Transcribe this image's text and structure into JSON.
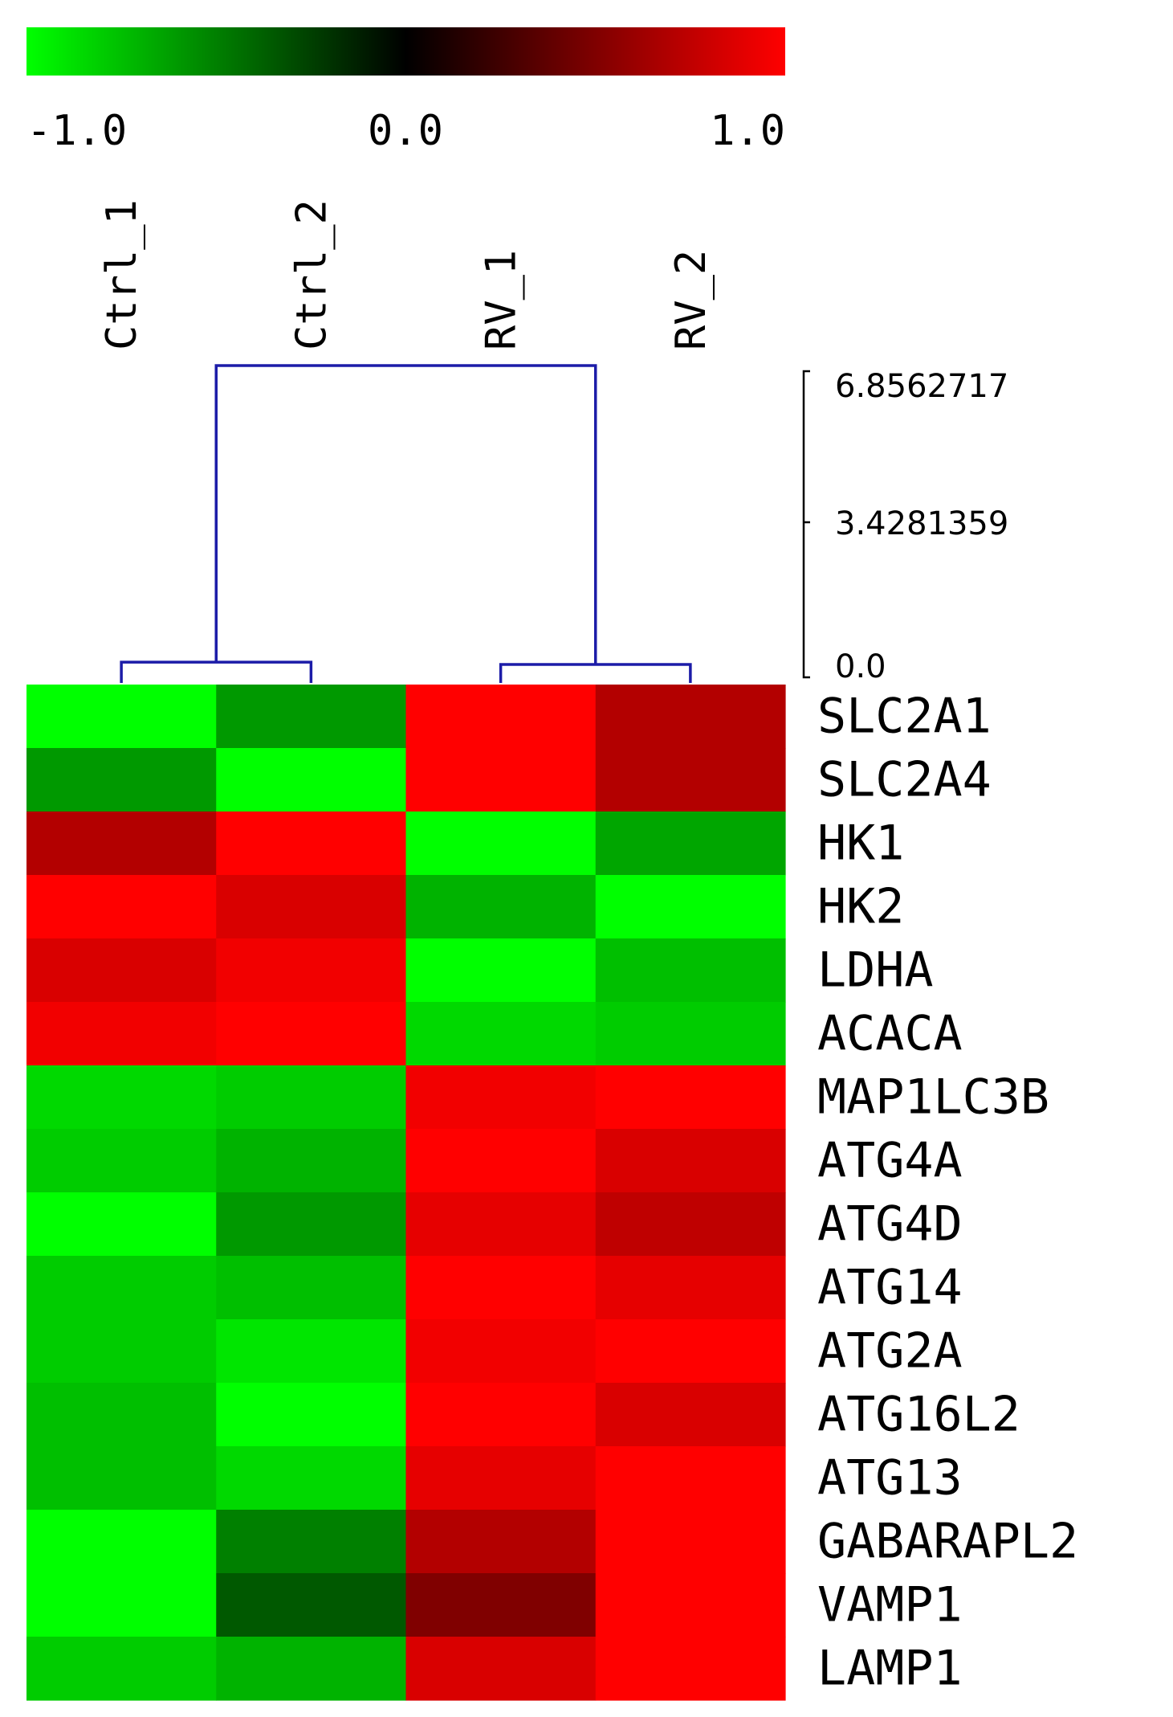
{
  "chart_data": {
    "type": "heatmap",
    "colorbar": {
      "min": -1.0,
      "mid": 0.0,
      "max": 1.0,
      "tick_labels": [
        "-1.0",
        "0.0",
        "1.0"
      ],
      "colors": {
        "low": "#00ff00",
        "mid": "#000000",
        "high": "#ff0000"
      }
    },
    "columns": [
      "Ctrl_1",
      "Ctrl_2",
      "RV_1",
      "RV_2"
    ],
    "rows": [
      "SLC2A1",
      "SLC2A4",
      "HK1",
      "HK2",
      "LDHA",
      "ACACA",
      "MAP1LC3B",
      "ATG4A",
      "ATG4D",
      "ATG14",
      "ATG2A",
      "ATG16L2",
      "ATG13",
      "GABARAPL2",
      "VAMP1",
      "LAMP1"
    ],
    "values": [
      [
        -1.0,
        -0.6,
        1.0,
        0.7
      ],
      [
        -0.6,
        -1.0,
        1.0,
        0.7
      ],
      [
        0.7,
        1.0,
        -1.0,
        -0.65
      ],
      [
        1.0,
        0.85,
        -0.7,
        -1.0
      ],
      [
        0.85,
        0.95,
        -1.0,
        -0.75
      ],
      [
        0.95,
        1.0,
        -0.85,
        -0.8
      ],
      [
        -0.85,
        -0.8,
        0.95,
        1.0
      ],
      [
        -0.8,
        -0.7,
        1.0,
        0.85
      ],
      [
        -1.0,
        -0.6,
        0.9,
        0.75
      ],
      [
        -0.8,
        -0.75,
        1.0,
        0.9
      ],
      [
        -0.8,
        -0.9,
        0.95,
        1.0
      ],
      [
        -0.75,
        -1.0,
        1.0,
        0.85
      ],
      [
        -0.75,
        -0.85,
        0.9,
        1.0
      ],
      [
        -1.0,
        -0.5,
        0.7,
        1.0
      ],
      [
        -1.0,
        -0.35,
        0.5,
        1.0
      ],
      [
        -0.8,
        -0.7,
        0.85,
        1.0
      ]
    ],
    "dendrogram": {
      "scale_labels": [
        "6.8562717",
        "3.4281359",
        "0.0"
      ],
      "scale_max": 6.8562717,
      "merges": [
        {
          "left": "Ctrl_1",
          "right": "Ctrl_2",
          "height": 0.45
        },
        {
          "left": "RV_1",
          "right": "RV_2",
          "height": 0.4
        },
        {
          "left": "Ctrl",
          "right": "RV",
          "height": 6.8562717
        }
      ]
    }
  }
}
